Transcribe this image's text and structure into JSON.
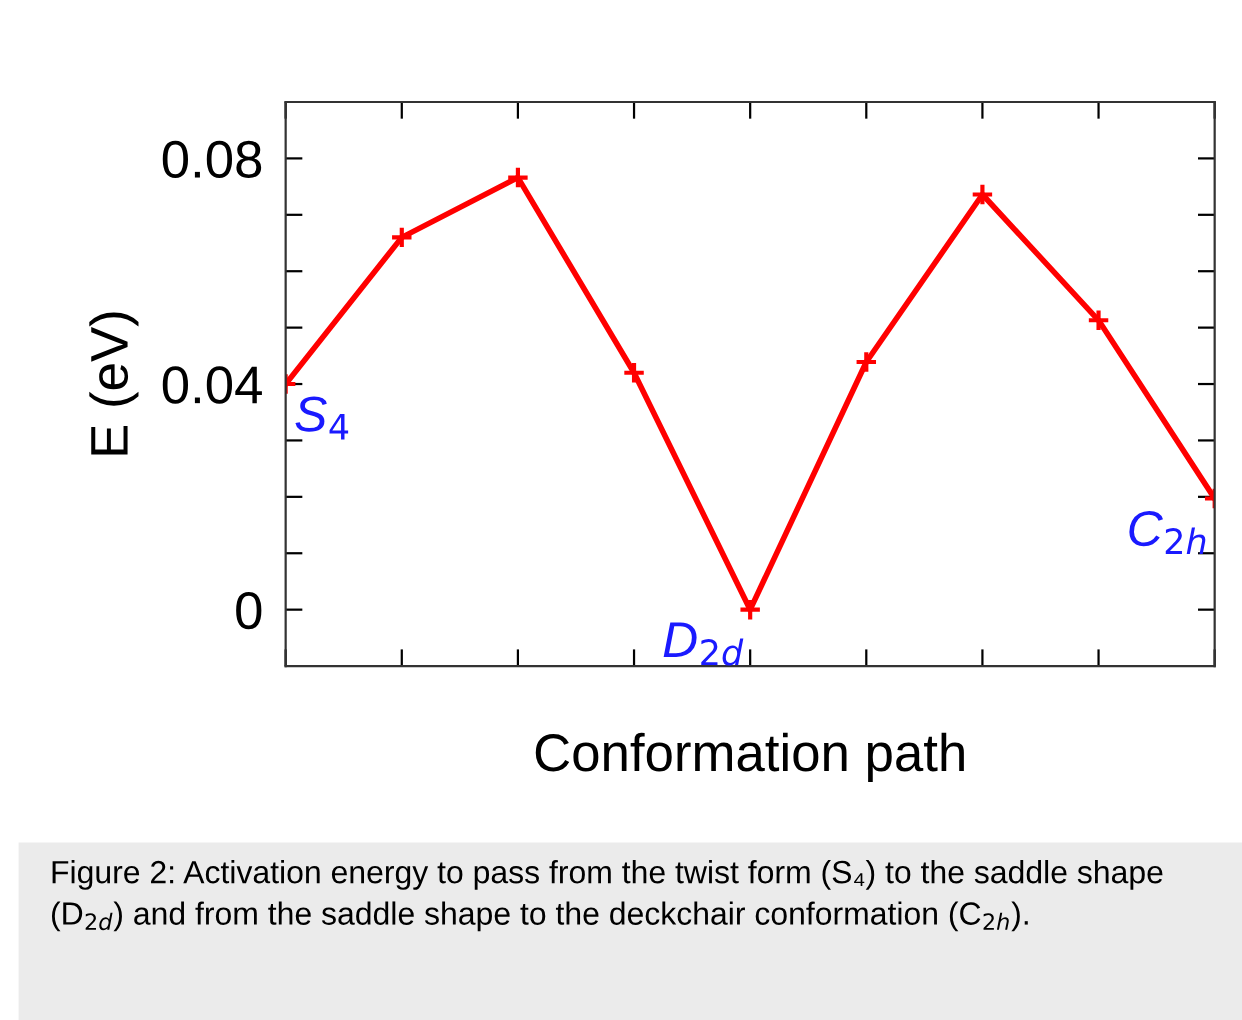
{
  "chart_data": {
    "type": "line",
    "xlabel": "Conformation path",
    "ylabel": "E (eV)",
    "categories": [
      null,
      null,
      null,
      null,
      null,
      null,
      null,
      null,
      null
    ],
    "series": [
      {
        "color": "#ff0000",
        "values": [
          0.04,
          0.066,
          0.0766,
          0.042,
          0.0,
          0.0439,
          0.0736,
          0.0513,
          0.0197
        ]
      }
    ],
    "ylim": [
      -0.01,
      0.09
    ],
    "yticks": [
      0,
      {
        "value": 0.01,
        "label": null
      },
      {
        "value": 0.02,
        "label": null
      },
      {
        "value": 0.03,
        "label": null
      },
      0.04,
      {
        "value": 0.05,
        "label": null
      },
      {
        "value": 0.06,
        "label": null
      },
      {
        "value": 0.07,
        "label": null
      },
      0.08
    ],
    "marker": "cross",
    "line_style": "solid",
    "grid": false,
    "legend": false,
    "annotations": [
      "Figure 2: Activation energy to pass from the twist form (S₄) to the saddle shape (D$_{2d}$) and from the saddle shape to the deckchair conformation (C$_{2h}$).",
      "S$_{4}$",
      "D$_{2d}$",
      "C$_{2h}$"
    ]
  }
}
